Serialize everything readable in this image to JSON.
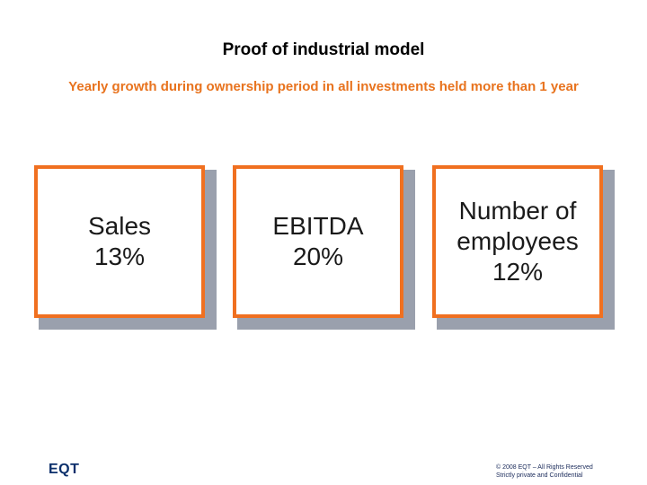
{
  "header": {
    "title": "Proof of industrial model",
    "subtitle": "Yearly growth during ownership period in all investments held more than 1 year"
  },
  "boxes": [
    {
      "lines": [
        "Sales",
        "13%"
      ]
    },
    {
      "lines": [
        "EBITDA",
        "20%"
      ]
    },
    {
      "lines": [
        "Number of",
        "employees",
        "12%"
      ]
    }
  ],
  "footer": {
    "logo": "EQT",
    "copyright_line1": "© 2008 EQT – All Rights Reserved",
    "copyright_line2": "Strictly private and Confidential"
  },
  "colors": {
    "accent": "#F07020",
    "subtitle": "#E8731E",
    "shadow": "#9aa0ad",
    "logo": "#0b2f6b"
  }
}
